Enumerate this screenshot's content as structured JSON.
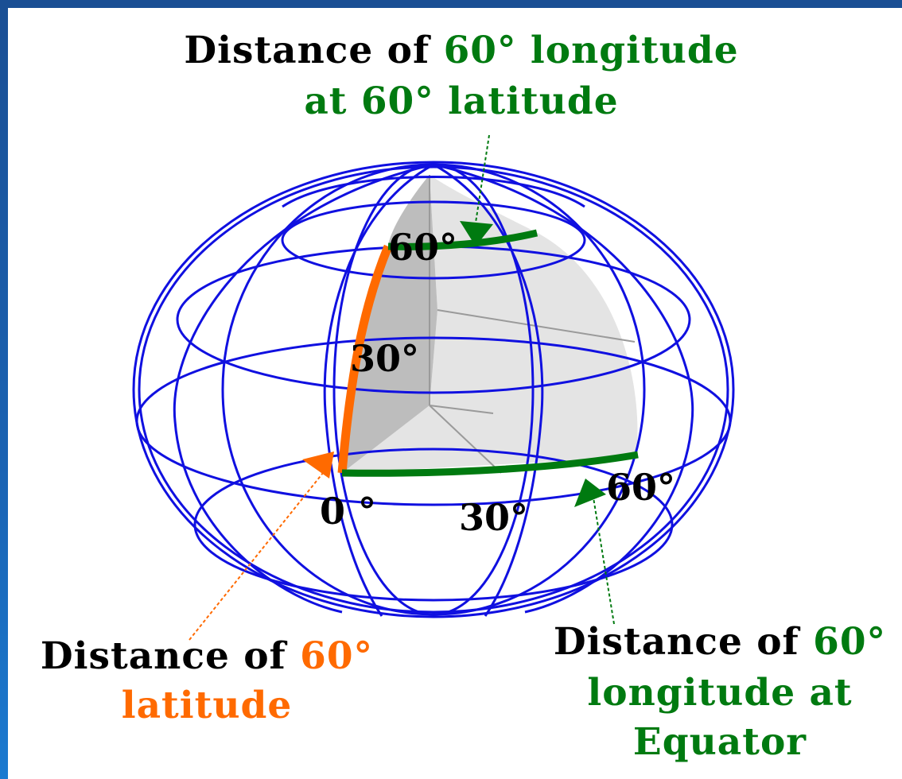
{
  "labels": {
    "top_prefix": "Distance of ",
    "top_highlight": "60° longitude",
    "top_line2": "at 60° latitude",
    "left_prefix": "Distance of ",
    "left_highlight": "60°",
    "left_line2": "latitude",
    "right_prefix": "Distance of ",
    "right_highlight": "60°",
    "right_line2": "longitude at",
    "right_line3": "Equator"
  },
  "angle_labels": {
    "lat_60": "60°",
    "lat_30": "30°",
    "lon_0": "0 °",
    "lon_30": "30°",
    "lon_60": "60°"
  },
  "colors": {
    "grid": "#1010e0",
    "green": "#007a10",
    "orange": "#ff6a00",
    "wedge_light": "#e4e4e4",
    "wedge_dark": "#bdbdbd"
  }
}
